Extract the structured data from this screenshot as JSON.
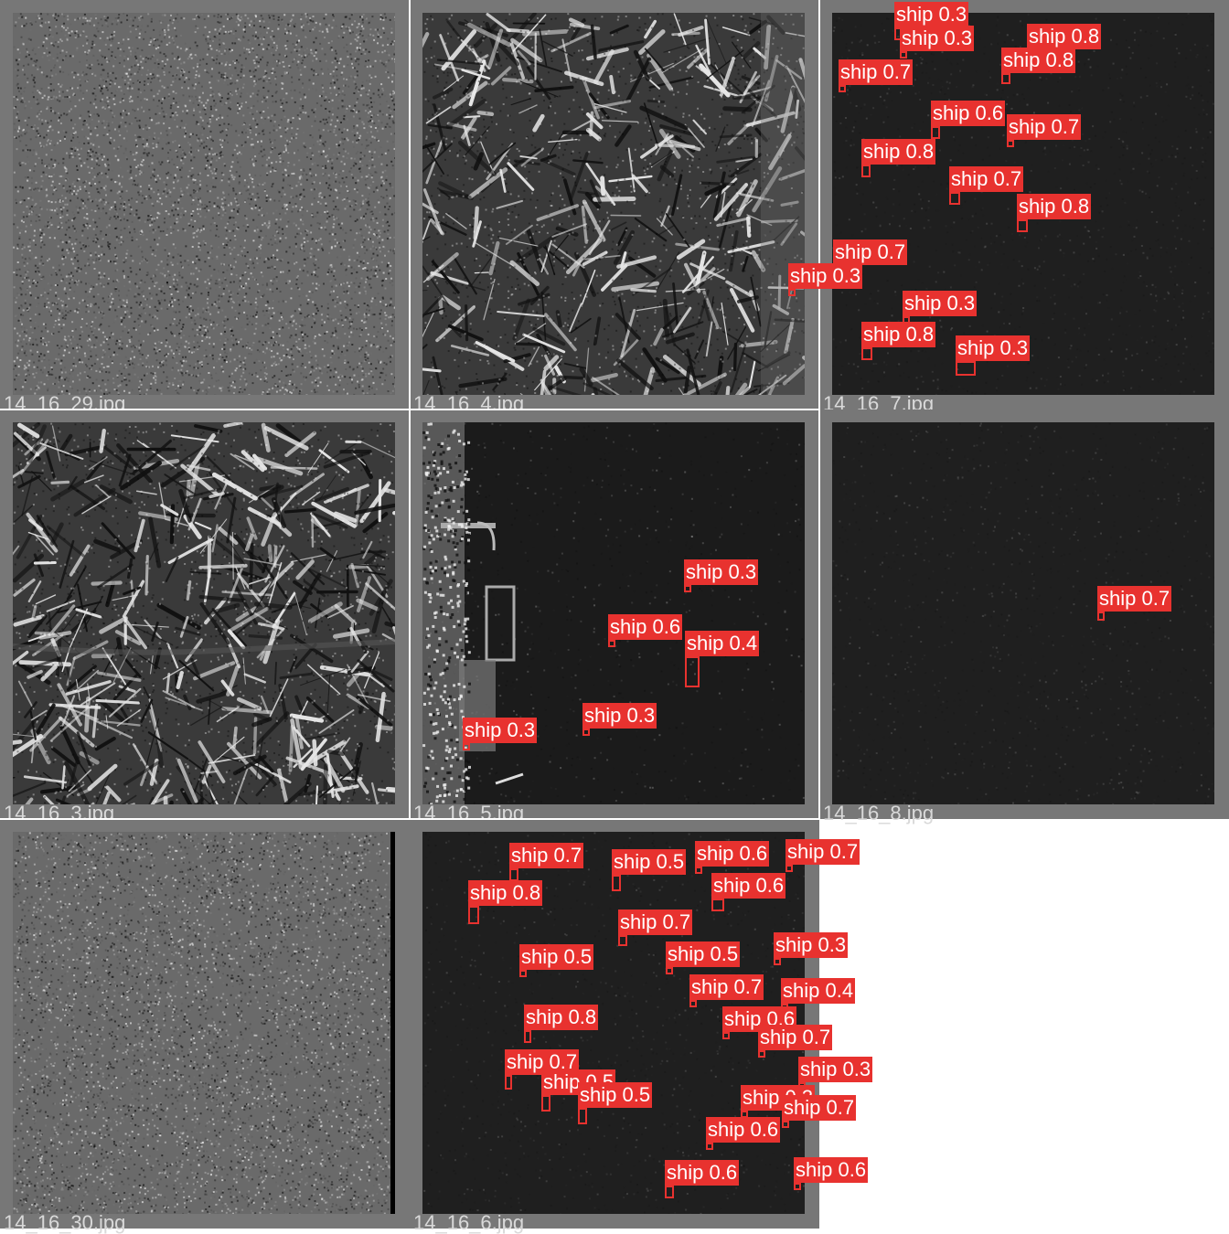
{
  "grid": {
    "cells": [
      {
        "filename": "14_16_29.jpg",
        "scene": "sea-noise-gray"
      },
      {
        "filename": "14_16_4.jpg",
        "scene": "mountains"
      },
      {
        "filename": "14_16_7.jpg",
        "scene": "dark-sea"
      },
      {
        "filename": "14_16_3.jpg",
        "scene": "mountains-dense"
      },
      {
        "filename": "14_16_5.jpg",
        "scene": "harbor-dark-sea"
      },
      {
        "filename": "14_16_8.jpg",
        "scene": "dark-sea"
      },
      {
        "filename": "14_16_30.jpg",
        "scene": "sea-noise-gray"
      },
      {
        "filename": "14_16_6.jpg",
        "scene": "dark-sea"
      }
    ]
  },
  "colors": {
    "label_bg": "#e8322f",
    "label_text": "#ffffff",
    "cell_border": "#777777",
    "filename_text": "#d9d9d9"
  },
  "detections": {
    "14_16_7.jpg": [
      "ship 0.3",
      "ship 0.3",
      "ship 0.8",
      "ship 0.8",
      "ship 0.7",
      "ship 0.6",
      "ship 0.7",
      "ship 0.8",
      "ship 0.7",
      "ship 0.8",
      "ship 0.7",
      "ship 0.3",
      "ship 0.3",
      "ship 0.8",
      "ship 0.3"
    ],
    "14_16_5.jpg": [
      "ship 0.3",
      "ship 0.6",
      "ship 0.4",
      "ship 0.3",
      "ship 0.3"
    ],
    "14_16_8.jpg": [
      "ship 0.7"
    ],
    "14_16_6.jpg": [
      "ship 0.7",
      "ship 0.5",
      "ship 0.6",
      "ship 0.7",
      "ship 0.8",
      "ship 0.6",
      "ship 0.7",
      "ship 0.5",
      "ship 0.3",
      "ship 0.5",
      "ship 0.7",
      "ship 0.4",
      "ship 0.8",
      "ship 0.6",
      "ship 0.7",
      "ship 0.7",
      "ship 0.3",
      "ship 0.5",
      "ship 0.5",
      "ship 0.3",
      "ship 0.7",
      "ship 0.6",
      "ship 0.6",
      "ship 0.6"
    ]
  }
}
